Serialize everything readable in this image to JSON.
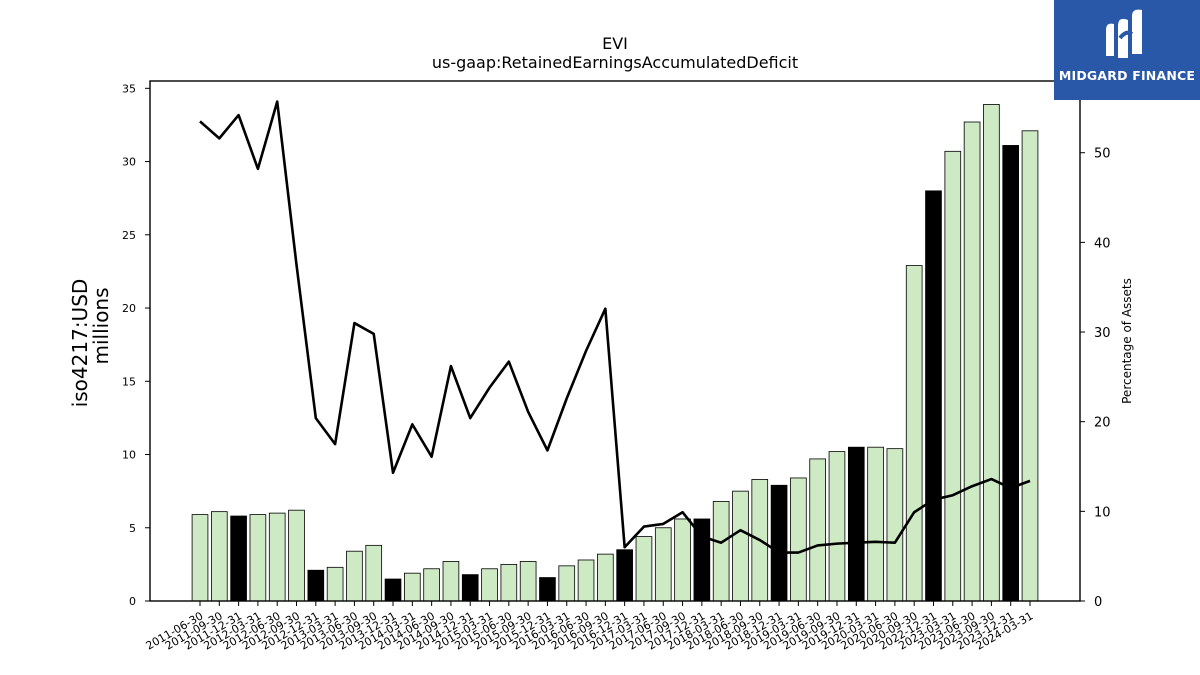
{
  "chart_data": {
    "type": "bar+line",
    "title": "EVI",
    "subtitle": "us-gaap:RetainedEarningsAccumulatedDeficit",
    "ylabel_left": [
      "iso4217:USD",
      "millions"
    ],
    "ylabel_right": "Percentage of Assets",
    "ylim_left": [
      0,
      35.5
    ],
    "ylim_right": [
      0,
      58
    ],
    "yticks_left": [
      0,
      5,
      10,
      15,
      20,
      25,
      30,
      35
    ],
    "yticks_right": [
      0,
      10,
      20,
      30,
      40,
      50
    ],
    "colors": {
      "bar_quarter": "#cdeac4",
      "bar_annual": "#000000",
      "line": "#000000"
    },
    "categories": [
      "2011-06-30",
      "2011-09-30",
      "2011-12-31",
      "2012-03-31",
      "2012-06-30",
      "2012-09-30",
      "2012-12-31",
      "2013-03-31",
      "2013-06-30",
      "2013-09-30",
      "2013-12-31",
      "2014-03-31",
      "2014-06-30",
      "2014-09-30",
      "2014-12-31",
      "2015-03-31",
      "2015-06-30",
      "2015-09-30",
      "2015-12-31",
      "2016-03-31",
      "2016-06-30",
      "2016-09-30",
      "2016-12-31",
      "2017-03-31",
      "2017-06-30",
      "2017-09-30",
      "2017-12-31",
      "2018-03-31",
      "2018-06-30",
      "2018-09-30",
      "2018-12-31",
      "2019-03-31",
      "2019-06-30",
      "2019-09-30",
      "2019-12-31",
      "2020-03-31",
      "2020-06-30",
      "2020-09-30",
      "2022-12-31",
      "2023-03-31",
      "2023-06-30",
      "2023-09-30",
      "2023-12-31",
      "2024-03-31"
    ],
    "series": [
      {
        "kind": "bar",
        "values": [
          5.9,
          6.1,
          5.8,
          5.9,
          6.0,
          6.2,
          2.1,
          2.3,
          3.4,
          3.8,
          1.5,
          1.9,
          2.2,
          2.7,
          1.8,
          2.2,
          2.5,
          2.7,
          1.6,
          2.4,
          2.8,
          3.2,
          3.5,
          4.4,
          5.0,
          5.6,
          5.6,
          6.8,
          7.5,
          8.3,
          7.9,
          8.4,
          9.7,
          10.2,
          10.5,
          10.5,
          10.4,
          22.9,
          28.0,
          30.7,
          32.7,
          33.9,
          31.1,
          32.1
        ],
        "annual": [
          false,
          false,
          true,
          false,
          false,
          false,
          true,
          false,
          false,
          false,
          true,
          false,
          false,
          false,
          true,
          false,
          false,
          false,
          true,
          false,
          false,
          false,
          true,
          false,
          false,
          false,
          true,
          false,
          false,
          false,
          true,
          false,
          false,
          false,
          true,
          false,
          false,
          false,
          true,
          false,
          false,
          false,
          true,
          false
        ]
      },
      {
        "kind": "line",
        "axis": "right",
        "values": [
          53.5,
          51.6,
          54.2,
          48.2,
          55.7,
          37.5,
          20.4,
          17.5,
          31.0,
          29.8,
          14.3,
          19.7,
          16.1,
          26.2,
          20.4,
          23.8,
          26.7,
          21.1,
          16.8,
          22.6,
          27.9,
          32.6,
          6.0,
          8.3,
          8.6,
          9.9,
          7.2,
          6.5,
          7.9,
          6.8,
          5.4,
          5.4,
          6.2,
          6.4,
          6.5,
          6.6,
          6.5,
          9.9,
          11.3,
          11.8,
          12.8,
          13.6,
          12.6,
          13.4
        ]
      }
    ]
  },
  "logo": {
    "text": "MIDGARD FINANCE"
  }
}
